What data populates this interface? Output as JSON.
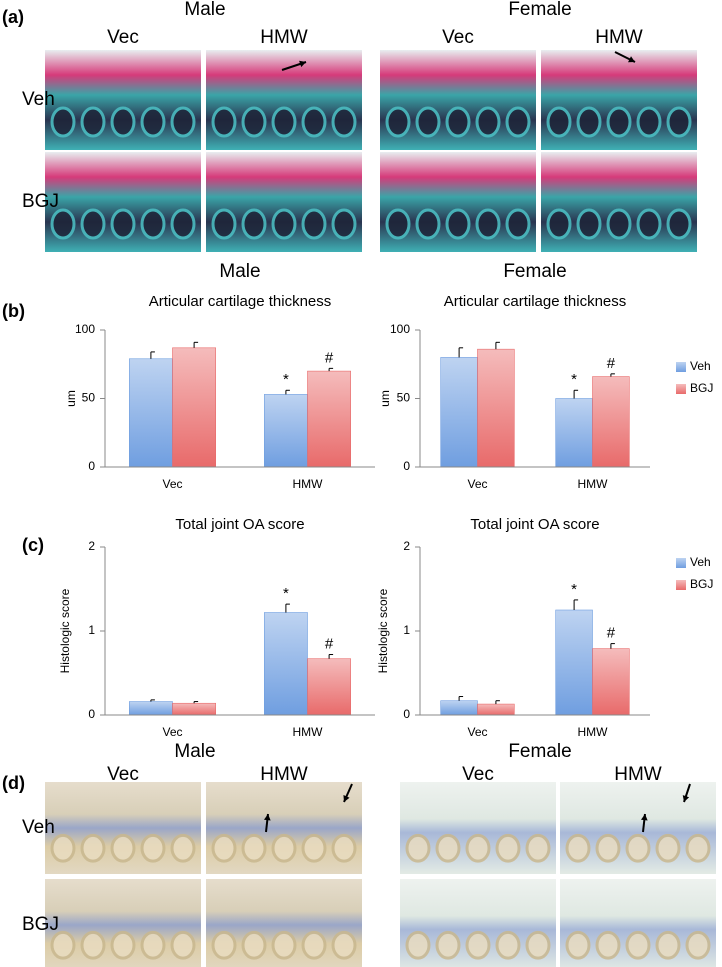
{
  "panel_a": {
    "label": "(a)",
    "columns": [
      {
        "sex": "Male",
        "groups": [
          "Vec",
          "HMW"
        ]
      },
      {
        "sex": "Female",
        "groups": [
          "Vec",
          "HMW"
        ]
      }
    ],
    "rows": [
      "Veh",
      "BGJ"
    ]
  },
  "panel_b": {
    "label": "(b)"
  },
  "panel_c": {
    "label": "(c)"
  },
  "panel_d": {
    "label": "(d)",
    "columns": [
      {
        "sex": "Male",
        "groups": [
          "Vec",
          "HMW"
        ]
      },
      {
        "sex": "Female",
        "groups": [
          "Vec",
          "HMW"
        ]
      }
    ],
    "rows": [
      "Veh",
      "BGJ"
    ]
  },
  "chart_data": [
    {
      "type": "bar",
      "header": "Male",
      "title": "Articular cartilage thickness",
      "ylabel": "um",
      "categories": [
        "Vec",
        "HMW"
      ],
      "series": [
        {
          "name": "Veh",
          "color": "#6f9ee0",
          "values": [
            79,
            53
          ],
          "errors": [
            5,
            3
          ]
        },
        {
          "name": "BGJ",
          "color": "#e86a6a",
          "values": [
            87,
            70
          ],
          "errors": [
            4,
            2
          ]
        }
      ],
      "ylim": [
        0,
        100
      ],
      "yticks": [
        0,
        50,
        100
      ],
      "annotations": [
        {
          "text": "*",
          "category": "HMW",
          "series": "Veh"
        },
        {
          "text": "#",
          "category": "HMW",
          "series": "BGJ"
        }
      ]
    },
    {
      "type": "bar",
      "header": "Female",
      "title": "Articular cartilage thickness",
      "ylabel": "um",
      "categories": [
        "Vec",
        "HMW"
      ],
      "series": [
        {
          "name": "Veh",
          "color": "#6f9ee0",
          "values": [
            80,
            50
          ],
          "errors": [
            7,
            6
          ]
        },
        {
          "name": "BGJ",
          "color": "#e86a6a",
          "values": [
            86,
            66
          ],
          "errors": [
            5,
            2
          ]
        }
      ],
      "ylim": [
        0,
        100
      ],
      "yticks": [
        0,
        50,
        100
      ],
      "legend": "right",
      "annotations": [
        {
          "text": "*",
          "category": "HMW",
          "series": "Veh"
        },
        {
          "text": "#",
          "category": "HMW",
          "series": "BGJ"
        }
      ]
    },
    {
      "type": "bar",
      "title": "Total joint OA score",
      "ylabel": "Histologic score",
      "categories": [
        "Vec",
        "HMW"
      ],
      "series": [
        {
          "name": "Veh",
          "color": "#6f9ee0",
          "values": [
            0.16,
            1.22
          ],
          "errors": [
            0.02,
            0.1
          ]
        },
        {
          "name": "BGJ",
          "color": "#e86a6a",
          "values": [
            0.14,
            0.67
          ],
          "errors": [
            0.02,
            0.05
          ]
        }
      ],
      "ylim": [
        0,
        2
      ],
      "yticks": [
        0,
        1,
        2
      ],
      "annotations": [
        {
          "text": "*",
          "category": "HMW",
          "series": "Veh"
        },
        {
          "text": "#",
          "category": "HMW",
          "series": "BGJ"
        }
      ]
    },
    {
      "type": "bar",
      "title": "Total joint OA score",
      "ylabel": "Histologic score",
      "categories": [
        "Vec",
        "HMW"
      ],
      "series": [
        {
          "name": "Veh",
          "color": "#6f9ee0",
          "values": [
            0.17,
            1.25
          ],
          "errors": [
            0.05,
            0.12
          ]
        },
        {
          "name": "BGJ",
          "color": "#e86a6a",
          "values": [
            0.13,
            0.79
          ],
          "errors": [
            0.04,
            0.06
          ]
        }
      ],
      "ylim": [
        0,
        2
      ],
      "yticks": [
        0,
        1,
        2
      ],
      "legend": "right",
      "annotations": [
        {
          "text": "*",
          "category": "HMW",
          "series": "Veh"
        },
        {
          "text": "#",
          "category": "HMW",
          "series": "BGJ"
        }
      ]
    }
  ]
}
